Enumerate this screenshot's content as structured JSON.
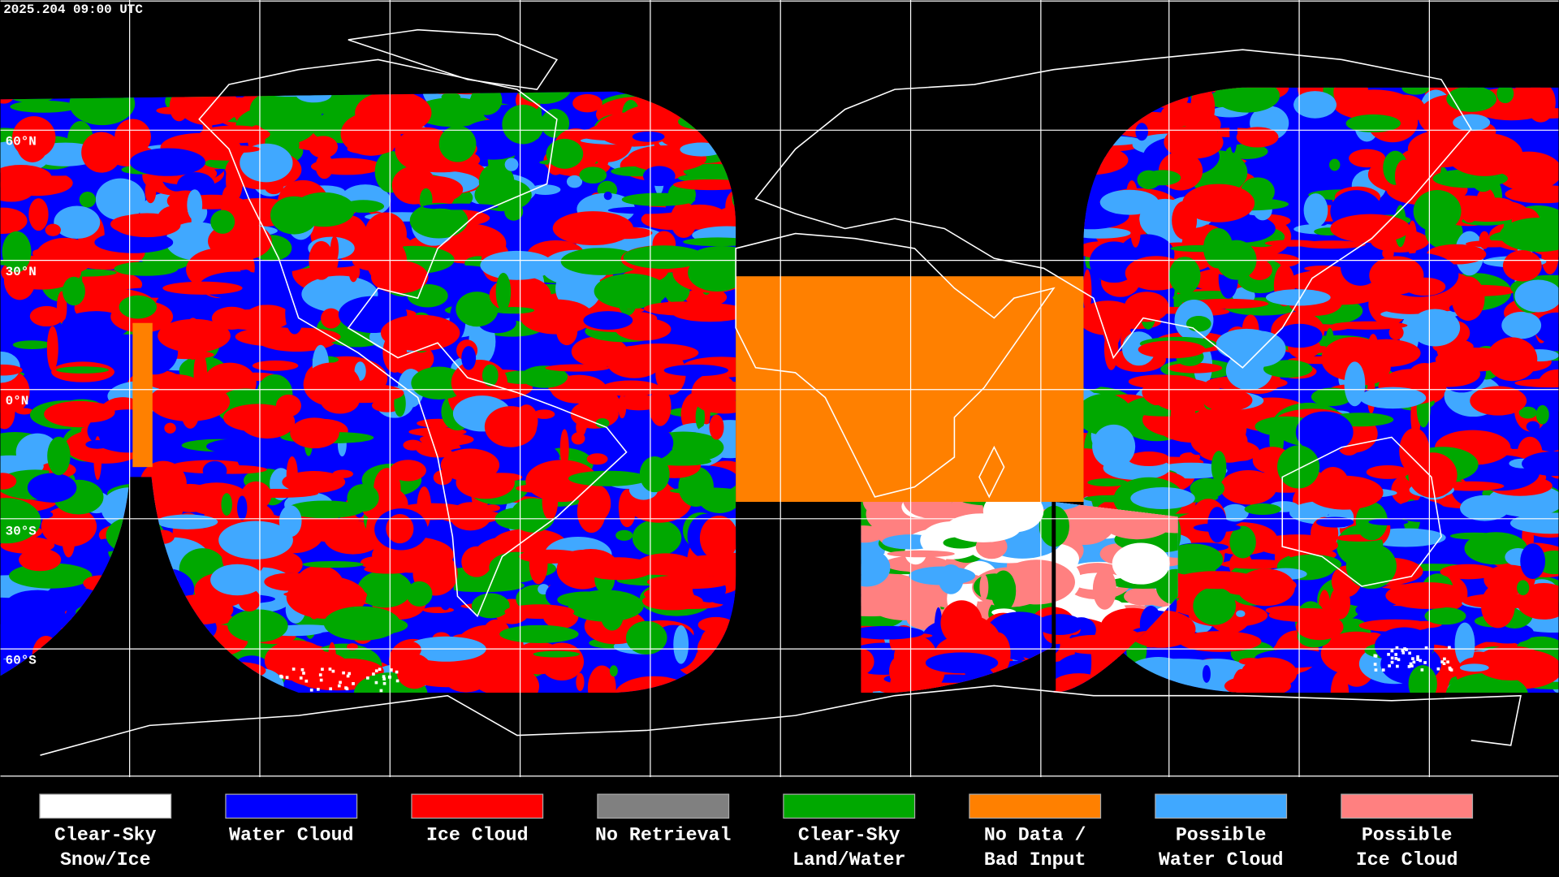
{
  "header": {
    "timestamp": "2025.204 09:00 UTC"
  },
  "latitude_labels": [
    "60°N",
    "30°N",
    "0°N",
    "30°S",
    "60°S"
  ],
  "legend": {
    "items": [
      {
        "lines": [
          "Clear-Sky",
          "Snow/Ice"
        ],
        "color": "#ffffff"
      },
      {
        "lines": [
          "Water Cloud"
        ],
        "color": "#0000ff"
      },
      {
        "lines": [
          "Ice Cloud"
        ],
        "color": "#ff0000"
      },
      {
        "lines": [
          "No Retrieval"
        ],
        "color": "#808080"
      },
      {
        "lines": [
          "Clear-Sky",
          "Land/Water"
        ],
        "color": "#00a800"
      },
      {
        "lines": [
          "No Data /",
          "Bad Input"
        ],
        "color": "#ff8000"
      },
      {
        "lines": [
          "Possible",
          "Water Cloud"
        ],
        "color": "#40a8ff"
      },
      {
        "lines": [
          "Possible",
          "Ice Cloud"
        ],
        "color": "#ff8080"
      }
    ]
  }
}
